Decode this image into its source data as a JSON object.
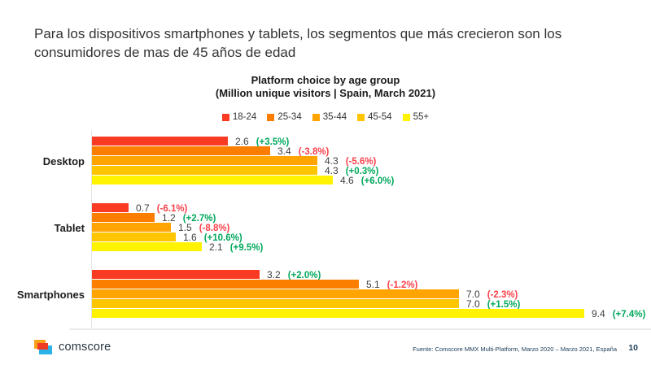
{
  "slide": {
    "title": "Para los dispositivos smartphones y tablets, los segmentos que más crecieron son los consumidores de mas de 45 años de edad"
  },
  "chart": {
    "title_line1": "Platform choice by age group",
    "title_line2": "(Million unique visitors | Spain, March 2021)"
  },
  "chart_data": {
    "type": "bar",
    "orientation": "horizontal",
    "title": "Platform choice by age group",
    "subtitle": "Million unique visitors | Spain, March 2021",
    "categories": [
      "Desktop",
      "Tablet",
      "Smartphones"
    ],
    "series": [
      {
        "name": "18-24",
        "color": "#fa3b23",
        "values": [
          2.6,
          0.7,
          3.2
        ],
        "changes": [
          "(+3.5%)",
          "(-6.1%)",
          "(+2.0%)"
        ]
      },
      {
        "name": "25-34",
        "color": "#fc7e01",
        "values": [
          3.4,
          1.2,
          5.1
        ],
        "changes": [
          "(-3.8%)",
          "(+2.7%)",
          "(-1.2%)"
        ]
      },
      {
        "name": "35-44",
        "color": "#ffa401",
        "values": [
          4.3,
          1.5,
          7.0
        ],
        "changes": [
          "(-5.6%)",
          "(-8.8%)",
          "(-2.3%)"
        ]
      },
      {
        "name": "45-54",
        "color": "#ffc501",
        "values": [
          4.3,
          1.6,
          7.0
        ],
        "changes": [
          "(+0.3%)",
          "(+10.6%)",
          "(+1.5%)"
        ]
      },
      {
        "name": "55+",
        "color": "#fff301",
        "values": [
          4.6,
          2.1,
          9.4
        ],
        "changes": [
          "(+6.0%)",
          "(+9.5%)",
          "(+7.4%)"
        ]
      }
    ],
    "xlim": [
      0,
      9.4
    ],
    "grid": false,
    "legend_position": "top",
    "positive_color": "#00a85c",
    "negative_color": "#f9414b"
  },
  "footer": {
    "logo_text": "comscore",
    "source": "Fuente: Comscore MMX Multi-Platform, Marzo 2020 – Marzo 2021, España",
    "page_number": "10"
  }
}
